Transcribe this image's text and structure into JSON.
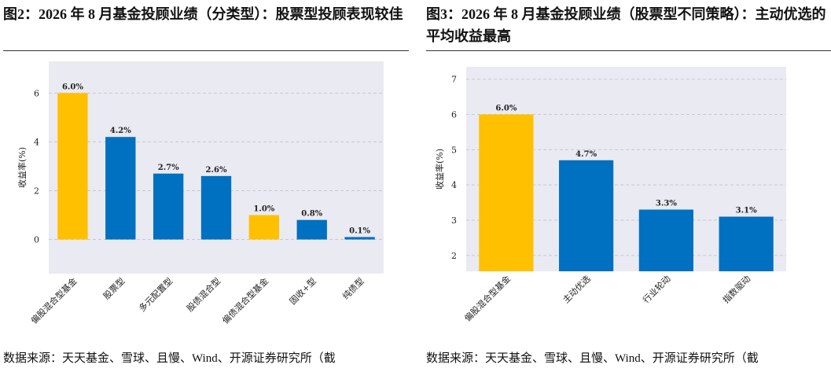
{
  "chart_data": [
    {
      "type": "bar",
      "title": "图2：2026 年 8 月基金投顾业绩（分类型）：股票型投顾表现较佳",
      "ylabel": "收益率(%)",
      "categories": [
        "偏股混合型基金",
        "股票型",
        "多元配置型",
        "股债混合型",
        "偏债混合型基金",
        "固收+型",
        "纯债型"
      ],
      "values": [
        6.0,
        4.2,
        2.7,
        2.6,
        1.0,
        0.8,
        0.1
      ],
      "value_labels": [
        "6.0%",
        "4.2%",
        "2.7%",
        "2.6%",
        "1.0%",
        "0.8%",
        "0.1%"
      ],
      "colors": [
        "#ffc000",
        "#0070c0",
        "#0070c0",
        "#0070c0",
        "#ffc000",
        "#0070c0",
        "#0070c0"
      ],
      "ylim": [
        -1.4,
        7.3
      ],
      "yticks": [
        0,
        2,
        4,
        6
      ],
      "grid": true,
      "source": "数据来源：天天基金、雪球、且慢、Wind、开源证券研究所（截"
    },
    {
      "type": "bar",
      "title": "图3：2026 年 8 月基金投顾业绩（股票型不同策略）：主动优选的平均收益最高",
      "ylabel": "收益率(%)",
      "categories": [
        "偏股混合型基金",
        "主动优选",
        "行业轮动",
        "指数驱动"
      ],
      "values": [
        6.0,
        4.7,
        3.3,
        3.1
      ],
      "value_labels": [
        "6.0%",
        "4.7%",
        "3.3%",
        "3.1%"
      ],
      "colors": [
        "#ffc000",
        "#0070c0",
        "#0070c0",
        "#0070c0"
      ],
      "ylim": [
        1.55,
        7.35
      ],
      "yticks": [
        2,
        3,
        4,
        5,
        6,
        7
      ],
      "grid": true,
      "source": "数据来源：天天基金、雪球、且慢、Wind、开源证券研究所（截"
    }
  ]
}
